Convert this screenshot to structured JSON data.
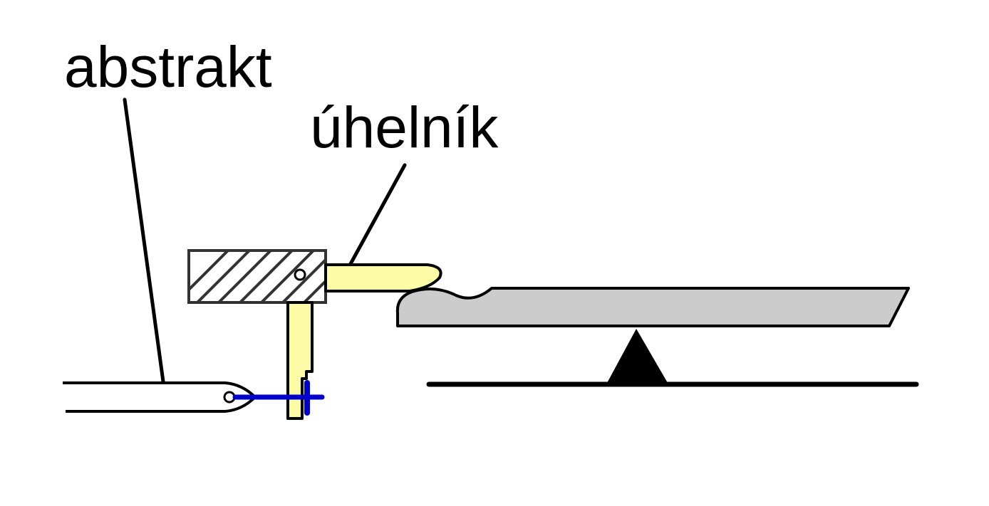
{
  "labels": {
    "abstrakt": "abstrakt",
    "uhelnik": "úhelník"
  },
  "colors": {
    "background": "#ffffff",
    "stroke": "#000000",
    "square_fill": "#fcfca6",
    "key_fill": "#cccccc",
    "tracker_wire": "#0000cc",
    "hatch": "#333333",
    "fulcrum": "#000000"
  }
}
